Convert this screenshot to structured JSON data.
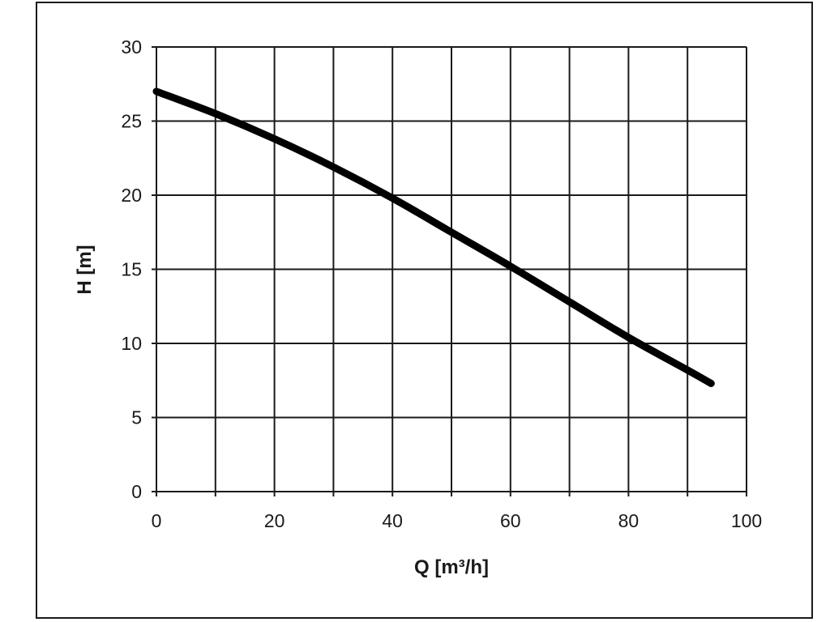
{
  "chart_data": {
    "type": "line",
    "xlabel": "Q [m³/h]",
    "ylabel": "H [m]",
    "xlim": [
      0,
      100
    ],
    "ylim": [
      0,
      30
    ],
    "xticks": [
      0,
      20,
      40,
      60,
      80,
      100
    ],
    "yticks": [
      0,
      5,
      10,
      15,
      20,
      25,
      30
    ],
    "x_gridlines": [
      0,
      10,
      20,
      30,
      40,
      50,
      60,
      70,
      80,
      90,
      100
    ],
    "y_gridlines": [
      0,
      5,
      10,
      15,
      20,
      25,
      30
    ],
    "grid": true,
    "series": [
      {
        "x": [
          0,
          10,
          20,
          30,
          40,
          50,
          60,
          70,
          80,
          90,
          94
        ],
        "y": [
          27,
          25.5,
          23.8,
          21.9,
          19.8,
          17.5,
          15.2,
          12.8,
          10.4,
          8.2,
          7.3
        ]
      }
    ]
  },
  "colors": {
    "line": "#000000",
    "grid": "#1a1a1a",
    "frame": "#1a1a1a"
  }
}
